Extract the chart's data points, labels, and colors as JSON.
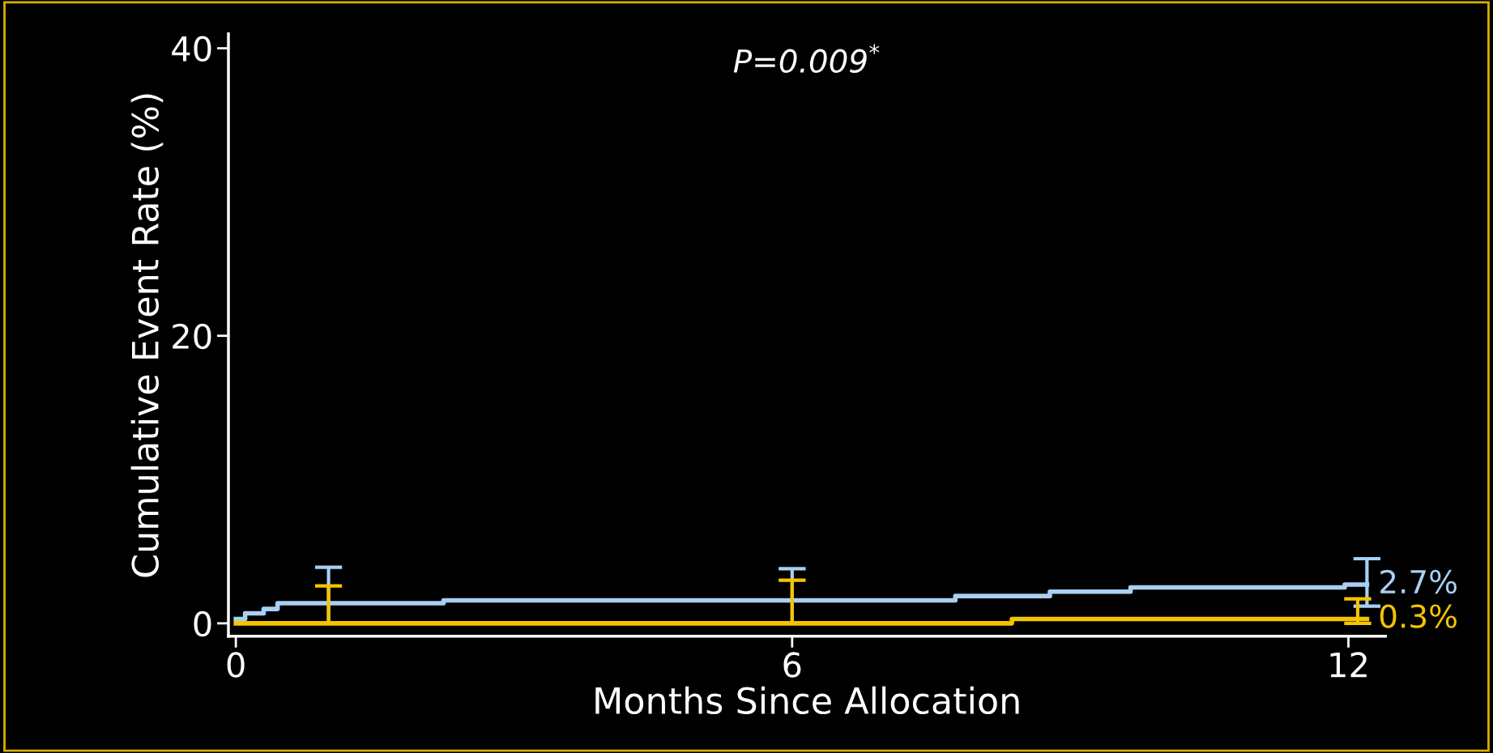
{
  "chart_data": {
    "type": "step",
    "xlabel": "Months Since Allocation",
    "ylabel": "Cumulative Event Rate (%)",
    "xlim": [
      -0.08,
      12.4
    ],
    "ylim": [
      -0.9,
      41
    ],
    "xticks": [
      0,
      6,
      12
    ],
    "yticks": [
      0,
      20,
      40
    ],
    "grid": false,
    "legend": false,
    "marker": "none",
    "line_style": "solid",
    "series": [
      {
        "color": "#a9d0f2",
        "x": [
          0,
          0.1,
          0.3,
          0.45,
          1,
          2.24,
          6,
          7.76,
          8.78,
          9.65,
          11.96,
          12.2
        ],
        "values": [
          0.3,
          0.7,
          1.0,
          1.4,
          1.4,
          1.6,
          1.6,
          1.9,
          2.2,
          2.5,
          2.7,
          2.7
        ],
        "errors": [
          null,
          null,
          null,
          null,
          [
            0,
            3.9
          ],
          null,
          [
            0,
            3.8
          ],
          null,
          null,
          null,
          null,
          [
            1.2,
            4.5
          ]
        ]
      },
      {
        "color": "#f5c400",
        "x": [
          0,
          1,
          6,
          8.37,
          12.1,
          12.2
        ],
        "values": [
          0,
          0,
          0,
          0.3,
          0.3,
          0.3
        ],
        "errors": [
          null,
          [
            0,
            2.6
          ],
          [
            0,
            3.0
          ],
          null,
          [
            0,
            1.7
          ],
          null
        ]
      }
    ],
    "annotations": [
      {
        "text": "2.7%",
        "x": 12.2,
        "y": 2.7
      },
      {
        "text": "0.3%",
        "x": 12.2,
        "y": 0.3
      },
      "P=0.009$^{*}$"
    ]
  }
}
